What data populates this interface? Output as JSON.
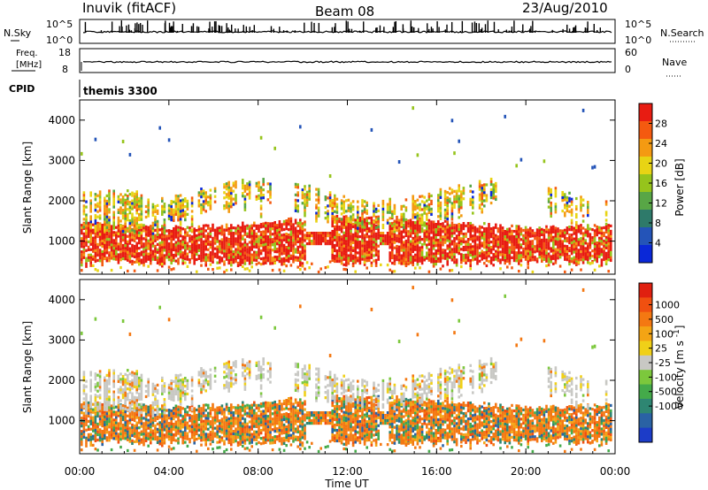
{
  "header": {
    "station": "Inuvik (fitACF)",
    "beam": "Beam 08",
    "date": "23/Aug/2010"
  },
  "summary_panels": {
    "nsky": {
      "label": "N.Sky",
      "left_ticks": [
        "10^5",
        "10^0"
      ],
      "right_label": "N.Search",
      "right_ticks": [
        "10^5",
        "10^0"
      ]
    },
    "freq": {
      "label_line1": "Freq.",
      "label_line2": "[MHz]",
      "left_ticks": [
        "18",
        "8"
      ],
      "right_label": "Nave",
      "right_ticks": [
        "60",
        "0"
      ]
    },
    "cpid": {
      "label": "CPID",
      "value": "themis 3300"
    }
  },
  "chart_data": [
    {
      "type": "heatmap",
      "title": "",
      "ylabel": "Slant Range [km]",
      "xlabel": "",
      "x_range_hours": [
        0,
        24
      ],
      "x_ticks": [
        "00:00",
        "04:00",
        "08:00",
        "12:00",
        "16:00",
        "20:00",
        "00:00"
      ],
      "ylim": [
        180,
        4500
      ],
      "y_ticks": [
        1000,
        2000,
        3000,
        4000
      ],
      "colorbar": {
        "label": "Power [dB]",
        "ticks": [
          4,
          8,
          12,
          16,
          20,
          24,
          28
        ],
        "range": [
          0,
          32
        ],
        "colors": [
          "#0a28d8",
          "#2454b8",
          "#2e7a6a",
          "#58a646",
          "#96c41c",
          "#e8d414",
          "#f49a12",
          "#f45a10",
          "#e81c12"
        ]
      }
    },
    {
      "type": "heatmap",
      "title": "",
      "ylabel": "Slant Range [km]",
      "xlabel": "Time UT",
      "x_range_hours": [
        0,
        24
      ],
      "x_ticks": [
        "00:00",
        "04:00",
        "08:00",
        "12:00",
        "16:00",
        "20:00",
        "00:00"
      ],
      "ylim": [
        180,
        4500
      ],
      "y_ticks": [
        1000,
        2000,
        3000,
        4000
      ],
      "colorbar": {
        "label": "Velocity [m s^-1]",
        "ticks": [
          "1000",
          "500",
          "100",
          "25",
          "-25",
          "-100",
          "-500",
          "-1000"
        ],
        "colors": [
          "#1c3cc8",
          "#2a62a4",
          "#2e8672",
          "#44aa4a",
          "#7cc83c",
          "#c8c8c4",
          "#f0d018",
          "#f4a414",
          "#f47812",
          "#f05010",
          "#e02010"
        ]
      }
    }
  ]
}
